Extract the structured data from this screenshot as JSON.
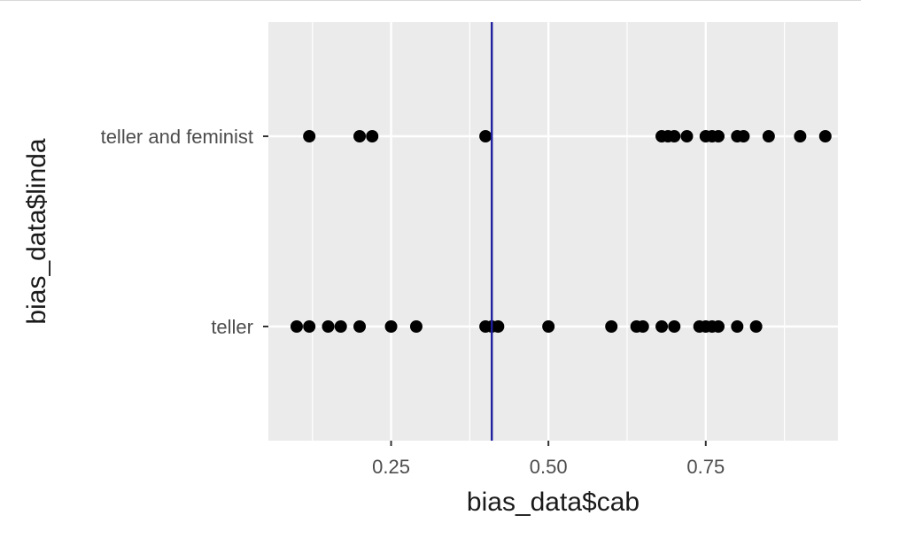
{
  "chart_data": {
    "type": "scatter",
    "xlabel": "bias_data$cab",
    "ylabel": "bias_data$linda",
    "xlim": [
      0.055,
      0.96
    ],
    "x_ticks": [
      0.25,
      0.5,
      0.75
    ],
    "x_tick_labels": [
      "0.25",
      "0.50",
      "0.75"
    ],
    "x_minor_ticks": [
      0.125,
      0.375,
      0.625,
      0.875
    ],
    "categories": [
      "teller",
      "teller and feminist"
    ],
    "grid": true,
    "vline": {
      "x": 0.41,
      "color": "#1f1f9e"
    },
    "series": [
      {
        "category": "teller and feminist",
        "values": [
          0.12,
          0.2,
          0.22,
          0.4,
          0.68,
          0.69,
          0.7,
          0.72,
          0.75,
          0.76,
          0.77,
          0.8,
          0.81,
          0.85,
          0.9,
          0.94
        ]
      },
      {
        "category": "teller",
        "values": [
          0.1,
          0.12,
          0.15,
          0.17,
          0.2,
          0.25,
          0.29,
          0.4,
          0.41,
          0.42,
          0.5,
          0.6,
          0.64,
          0.65,
          0.68,
          0.7,
          0.74,
          0.75,
          0.76,
          0.77,
          0.8,
          0.83
        ]
      }
    ],
    "colors": {
      "panel": "#ebebeb",
      "grid": "#ffffff",
      "point": "#000000",
      "axis_text": "#4d4d4d",
      "title_text": "#1a1a1a"
    }
  }
}
